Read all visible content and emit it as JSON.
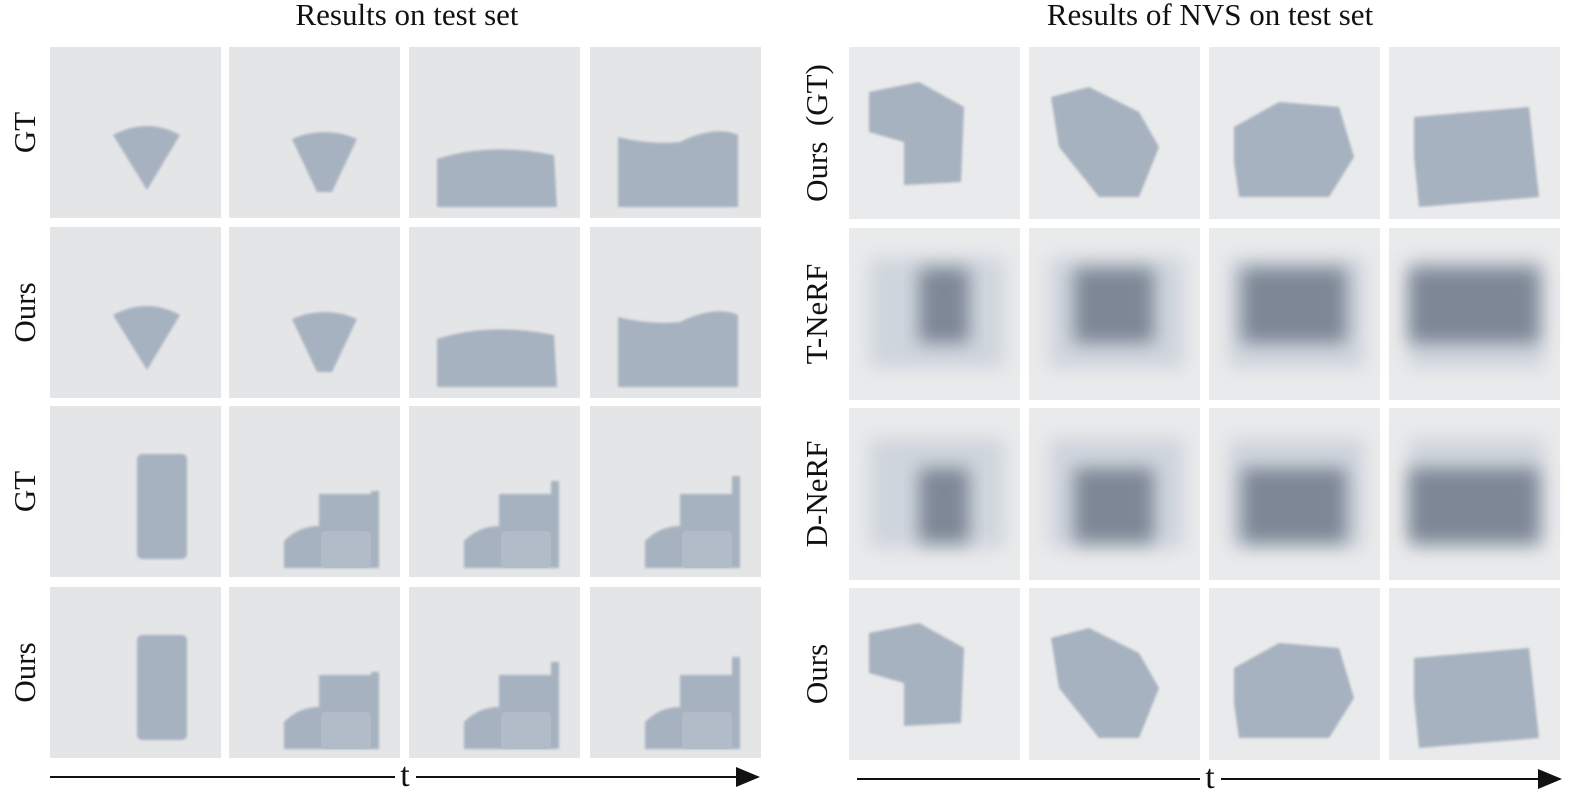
{
  "left_panel": {
    "title": "Results on test set",
    "row_labels": [
      "GT",
      "Ours",
      "GT",
      "Ours"
    ],
    "axis_label": "t"
  },
  "right_panel": {
    "title": "Results of NVS on test set",
    "row_labels": [
      "Ours  (GT)",
      "T-NeRF",
      "D-NeRF",
      "Ours"
    ],
    "axis_label": "t"
  }
}
